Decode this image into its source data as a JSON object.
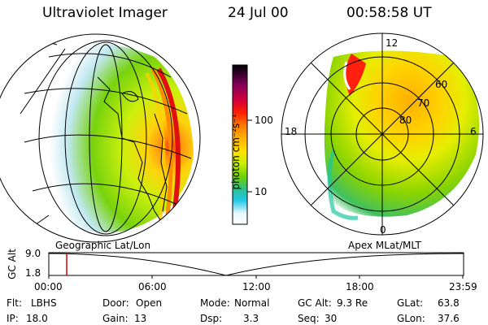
{
  "header": {
    "instrument": "Ultraviolet Imager",
    "date": "24 Jul 00",
    "time": "00:58:58 UT"
  },
  "colorbar": {
    "unit_label": "photon cm⁻²s⁻¹",
    "ticks": [
      "100",
      "10"
    ],
    "colors": [
      "#000000",
      "#3a0030",
      "#8a005a",
      "#d0003a",
      "#ff2000",
      "#ff7a00",
      "#ffb000",
      "#ffe000",
      "#c8ef00",
      "#70d000",
      "#30c090",
      "#20c8e8",
      "#e6f7fb",
      "#ffffff"
    ]
  },
  "geo_panel": {
    "label": "Geographic Lat/Lon"
  },
  "polar_panel": {
    "label": "Apex MLat/MLT",
    "mlt_labels": {
      "top": "12",
      "left": "18",
      "right": "6",
      "bottom": "0"
    },
    "lat_labels": [
      "60",
      "70",
      "80"
    ]
  },
  "altitude_strip": {
    "ylabel": "GC Alt",
    "yticks": [
      "9.0",
      "1.8"
    ],
    "xticks": [
      "00:00",
      "06:00",
      "12:00",
      "18:00",
      "23:59"
    ],
    "marker_color": "#cc0000"
  },
  "info": {
    "filter_label": "Flt:",
    "filter_value": "LBHS",
    "ip_label": "IP:",
    "ip_value": "18.0",
    "door_label": "Door:",
    "door_value": "Open",
    "gain_label": "Gain:",
    "gain_value": "13",
    "mode_label": "Mode:",
    "mode_value": "Normal",
    "dsp_label": "Dsp:",
    "dsp_value": "3.3",
    "gcalt_label": "GC Alt:",
    "gcalt_value": "9.3 Re",
    "seq_label": "Seq:",
    "seq_value": "30",
    "glat_label": "GLat:",
    "glat_value": "63.8",
    "glon_label": "GLon:",
    "glon_value": "37.6"
  }
}
